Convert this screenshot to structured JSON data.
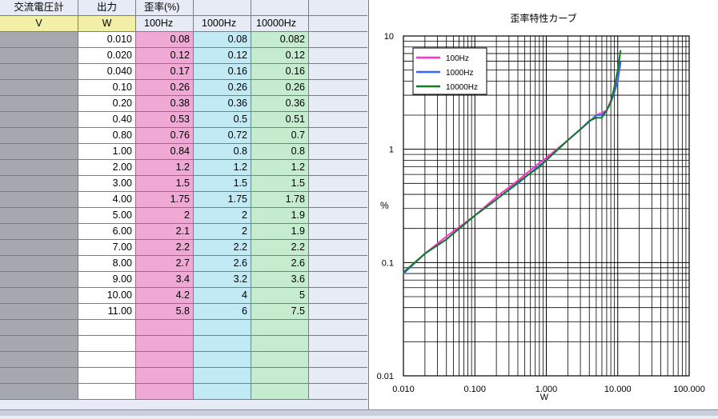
{
  "sheet": {
    "header1": [
      "交流電圧計",
      "出力",
      "歪率(%)",
      "",
      "",
      ""
    ],
    "header2": [
      "V",
      "W",
      "100Hz",
      "1000Hz",
      "10000Hz",
      ""
    ],
    "rows": [
      [
        "0.010",
        "0.08",
        "0.08",
        "0.082"
      ],
      [
        "0.020",
        "0.12",
        "0.12",
        "0.12"
      ],
      [
        "0.040",
        "0.17",
        "0.16",
        "0.16"
      ],
      [
        "0.10",
        "0.26",
        "0.26",
        "0.26"
      ],
      [
        "0.20",
        "0.38",
        "0.36",
        "0.36"
      ],
      [
        "0.40",
        "0.53",
        "0.5",
        "0.51"
      ],
      [
        "0.80",
        "0.76",
        "0.72",
        "0.7"
      ],
      [
        "1.00",
        "0.84",
        "0.8",
        "0.8"
      ],
      [
        "2.00",
        "1.2",
        "1.2",
        "1.2"
      ],
      [
        "3.00",
        "1.5",
        "1.5",
        "1.5"
      ],
      [
        "4.00",
        "1.75",
        "1.75",
        "1.78"
      ],
      [
        "5.00",
        "2",
        "2",
        "1.9"
      ],
      [
        "6.00",
        "2.1",
        "2",
        "1.9"
      ],
      [
        "7.00",
        "2.2",
        "2.2",
        "2.2"
      ],
      [
        "8.00",
        "2.7",
        "2.6",
        "2.6"
      ],
      [
        "9.00",
        "3.4",
        "3.2",
        "3.6"
      ],
      [
        "10.00",
        "4.2",
        "4",
        "5"
      ],
      [
        "11.00",
        "5.8",
        "6",
        "7.5"
      ]
    ],
    "empty_rows": 5,
    "colors": {
      "gray": "#a5a8ae",
      "pink": "#f0a8d4",
      "blue": "#c2eaf5",
      "green": "#c6ecd0",
      "yellow": "#f2f0a6"
    }
  },
  "chart_data": {
    "type": "line",
    "title": "歪率特性カーブ",
    "xlabel": "W",
    "ylabel": "%",
    "xscale": "log",
    "yscale": "log",
    "xlim": [
      0.01,
      100
    ],
    "ylim": [
      0.01,
      10
    ],
    "xtick_labels": [
      "0.010",
      "0.100",
      "1.000",
      "10.000",
      "100.000"
    ],
    "ytick_labels": [
      "10",
      "1",
      "0.1",
      "0.01"
    ],
    "grid": true,
    "legend_position": "top-left",
    "x": [
      0.01,
      0.02,
      0.04,
      0.1,
      0.2,
      0.4,
      0.8,
      1,
      2,
      3,
      4,
      5,
      6,
      7,
      8,
      9,
      10,
      11
    ],
    "series": [
      {
        "name": "100Hz",
        "color": "#ff33cc",
        "values": [
          0.08,
          0.12,
          0.17,
          0.26,
          0.38,
          0.53,
          0.76,
          0.84,
          1.2,
          1.5,
          1.75,
          2,
          2.1,
          2.2,
          2.7,
          3.4,
          4.2,
          5.8
        ]
      },
      {
        "name": "1000Hz",
        "color": "#3366ff",
        "values": [
          0.08,
          0.12,
          0.16,
          0.26,
          0.36,
          0.5,
          0.72,
          0.8,
          1.2,
          1.5,
          1.75,
          2,
          2,
          2.2,
          2.6,
          3.2,
          4,
          6
        ]
      },
      {
        "name": "10000Hz",
        "color": "#117a22",
        "values": [
          0.082,
          0.12,
          0.16,
          0.26,
          0.36,
          0.51,
          0.7,
          0.8,
          1.2,
          1.5,
          1.78,
          1.9,
          1.9,
          2.2,
          2.6,
          3.6,
          5,
          7.5
        ]
      }
    ]
  }
}
